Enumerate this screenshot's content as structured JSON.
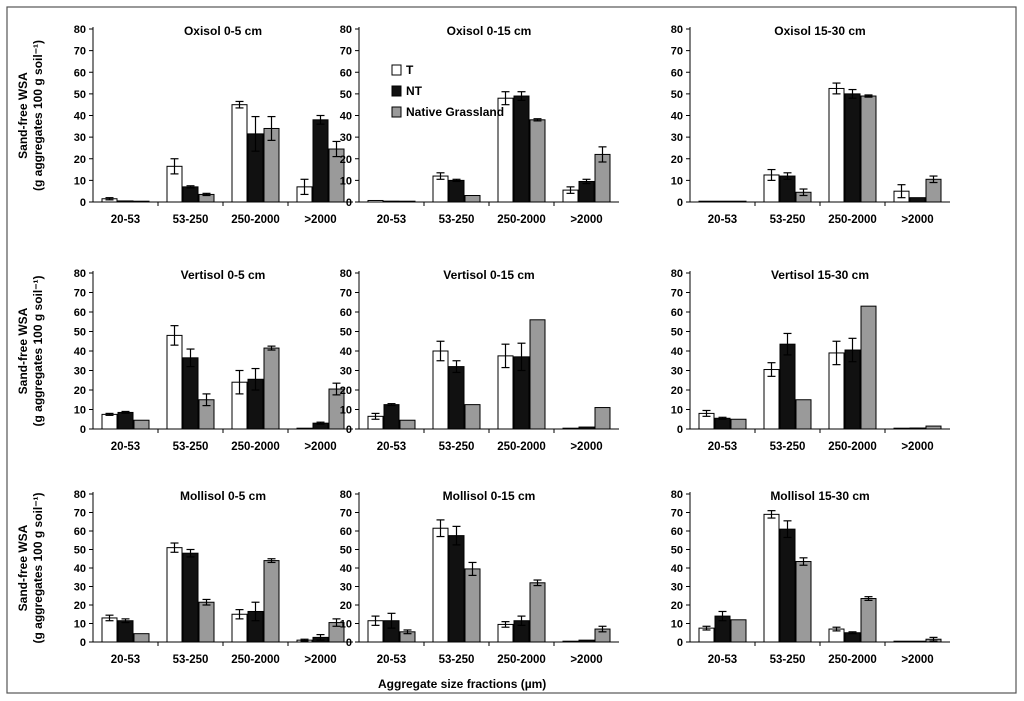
{
  "figure": {
    "y_axis_label_line1": "Sand-free WSA",
    "y_axis_label_line2": "(g aggregates 100 g soil⁻¹)",
    "x_axis_label": "Aggregate size fractions (µm)",
    "legend": [
      "T",
      "NT",
      "Native Grassland"
    ]
  },
  "colors": {
    "T": "#ffffff",
    "NT": "#111111",
    "Native Grassland": "#9a9a9a"
  },
  "chart_data": [
    {
      "type": "bar",
      "title": "Oxisol 0-5 cm",
      "categories": [
        "20-53",
        "53-250",
        "250-2000",
        ">2000"
      ],
      "ylim": [
        0,
        80
      ],
      "yticks": [
        0,
        10,
        20,
        30,
        40,
        50,
        60,
        70,
        80
      ],
      "series": [
        {
          "name": "T",
          "values": [
            1.5,
            16.5,
            45,
            7
          ],
          "errors": [
            0.5,
            3.5,
            1.5,
            3.5
          ]
        },
        {
          "name": "NT",
          "values": [
            0.5,
            7,
            31.5,
            38
          ],
          "errors": [
            0.3,
            0.5,
            8,
            2
          ]
        },
        {
          "name": "Native Grassland",
          "values": [
            0.3,
            3.5,
            34,
            24.5
          ],
          "errors": [
            0.2,
            0.5,
            5.5,
            3.5
          ]
        }
      ]
    },
    {
      "type": "bar",
      "title": "Oxisol 0-15 cm",
      "categories": [
        "20-53",
        "53-250",
        "250-2000",
        ">2000"
      ],
      "ylim": [
        0,
        80
      ],
      "yticks": [
        0,
        10,
        20,
        30,
        40,
        50,
        60,
        70,
        80
      ],
      "series": [
        {
          "name": "T",
          "values": [
            0.7,
            12,
            48,
            5.5
          ],
          "errors": [
            0.3,
            1.5,
            3,
            1.5
          ]
        },
        {
          "name": "NT",
          "values": [
            0.4,
            10,
            49,
            9.5
          ],
          "errors": [
            0.2,
            0.5,
            2,
            1
          ]
        },
        {
          "name": "Native Grassland",
          "values": [
            0.2,
            3,
            38,
            22
          ],
          "errors": [
            0.1,
            0.3,
            0.5,
            3.5
          ]
        }
      ]
    },
    {
      "type": "bar",
      "title": "Oxisol 15-30 cm",
      "categories": [
        "20-53",
        "53-250",
        "250-2000",
        ">2000"
      ],
      "ylim": [
        0,
        80
      ],
      "yticks": [
        0,
        10,
        20,
        30,
        40,
        50,
        60,
        70,
        80
      ],
      "series": [
        {
          "name": "T",
          "values": [
            0.3,
            12.5,
            52.5,
            5
          ],
          "errors": [
            0.1,
            2.5,
            2.5,
            3
          ]
        },
        {
          "name": "NT",
          "values": [
            0.2,
            12,
            50,
            2
          ],
          "errors": [
            0.1,
            1.5,
            2,
            0.3
          ]
        },
        {
          "name": "Native Grassland",
          "values": [
            0.1,
            4.5,
            49,
            10.5
          ],
          "errors": [
            0.1,
            1.5,
            0.5,
            1.5
          ]
        }
      ]
    },
    {
      "type": "bar",
      "title": "Vertisol 0-5 cm",
      "categories": [
        "20-53",
        "53-250",
        "250-2000",
        ">2000"
      ],
      "ylim": [
        0,
        80
      ],
      "yticks": [
        0,
        10,
        20,
        30,
        40,
        50,
        60,
        70,
        80
      ],
      "series": [
        {
          "name": "T",
          "values": [
            7.5,
            48,
            24,
            0.3
          ],
          "errors": [
            0.5,
            5,
            6,
            0.2
          ]
        },
        {
          "name": "NT",
          "values": [
            8.5,
            36.5,
            25.5,
            3
          ],
          "errors": [
            0.5,
            4.5,
            5.5,
            0.5
          ]
        },
        {
          "name": "Native Grassland",
          "values": [
            4.5,
            15,
            41.5,
            20.5
          ],
          "errors": [
            0.3,
            3,
            1,
            3
          ]
        }
      ]
    },
    {
      "type": "bar",
      "title": "Vertisol 0-15 cm",
      "categories": [
        "20-53",
        "53-250",
        "250-2000",
        ">2000"
      ],
      "ylim": [
        0,
        80
      ],
      "yticks": [
        0,
        10,
        20,
        30,
        40,
        50,
        60,
        70,
        80
      ],
      "series": [
        {
          "name": "T",
          "values": [
            6.5,
            40,
            37.5,
            0.2
          ],
          "errors": [
            1.5,
            5,
            6,
            0.1
          ]
        },
        {
          "name": "NT",
          "values": [
            12.5,
            32,
            37,
            1
          ],
          "errors": [
            0.5,
            3,
            7,
            0.3
          ]
        },
        {
          "name": "Native Grassland",
          "values": [
            4.5,
            12.5,
            56,
            11
          ],
          "errors": [
            0.3,
            0.3,
            0.3,
            0.3
          ]
        }
      ]
    },
    {
      "type": "bar",
      "title": "Vertisol 15-30 cm",
      "categories": [
        "20-53",
        "53-250",
        "250-2000",
        ">2000"
      ],
      "ylim": [
        0,
        80
      ],
      "yticks": [
        0,
        10,
        20,
        30,
        40,
        50,
        60,
        70,
        80
      ],
      "series": [
        {
          "name": "T",
          "values": [
            8,
            30.5,
            39,
            0.2
          ],
          "errors": [
            1.5,
            3.5,
            6,
            0.1
          ]
        },
        {
          "name": "NT",
          "values": [
            5.5,
            43.5,
            40.5,
            0.5
          ],
          "errors": [
            0.5,
            5.5,
            6,
            0.2
          ]
        },
        {
          "name": "Native Grassland",
          "values": [
            5,
            15,
            63,
            1.5
          ],
          "errors": [
            0.3,
            0.3,
            0.3,
            0.3
          ]
        }
      ]
    },
    {
      "type": "bar",
      "title": "Mollisol 0-5 cm",
      "categories": [
        "20-53",
        "53-250",
        "250-2000",
        ">2000"
      ],
      "ylim": [
        0,
        80
      ],
      "yticks": [
        0,
        10,
        20,
        30,
        40,
        50,
        60,
        70,
        80
      ],
      "series": [
        {
          "name": "T",
          "values": [
            13,
            51,
            15,
            1
          ],
          "errors": [
            1.5,
            2.5,
            2.5,
            0.5
          ]
        },
        {
          "name": "NT",
          "values": [
            11.5,
            48,
            16.5,
            2.5
          ],
          "errors": [
            1,
            2,
            5,
            1.5
          ]
        },
        {
          "name": "Native Grassland",
          "values": [
            4.5,
            21.5,
            44,
            10.5
          ],
          "errors": [
            0.3,
            1.5,
            1,
            2
          ]
        }
      ]
    },
    {
      "type": "bar",
      "title": "Mollisol 0-15 cm",
      "categories": [
        "20-53",
        "53-250",
        "250-2000",
        ">2000"
      ],
      "ylim": [
        0,
        80
      ],
      "yticks": [
        0,
        10,
        20,
        30,
        40,
        50,
        60,
        70,
        80
      ],
      "series": [
        {
          "name": "T",
          "values": [
            11.5,
            61.5,
            9.5,
            0.3
          ],
          "errors": [
            2.5,
            4.5,
            1.5,
            0.2
          ]
        },
        {
          "name": "NT",
          "values": [
            11.5,
            57.5,
            11.5,
            1
          ],
          "errors": [
            4,
            5,
            2.5,
            0.3
          ]
        },
        {
          "name": "Native Grassland",
          "values": [
            5.5,
            39.5,
            32,
            7
          ],
          "errors": [
            1,
            3.5,
            1.5,
            1.5
          ]
        }
      ]
    },
    {
      "type": "bar",
      "title": "Mollisol 15-30 cm",
      "categories": [
        "20-53",
        "53-250",
        "250-2000",
        ">2000"
      ],
      "ylim": [
        0,
        80
      ],
      "yticks": [
        0,
        10,
        20,
        30,
        40,
        50,
        60,
        70,
        80
      ],
      "series": [
        {
          "name": "T",
          "values": [
            7.5,
            69,
            7,
            0.2
          ],
          "errors": [
            1,
            2,
            1,
            0.1
          ]
        },
        {
          "name": "NT",
          "values": [
            14,
            61,
            5,
            0.3
          ],
          "errors": [
            2.5,
            4.5,
            0.5,
            0.1
          ]
        },
        {
          "name": "Native Grassland",
          "values": [
            12,
            43.5,
            23.5,
            1.5
          ],
          "errors": [
            0.3,
            2,
            1,
            1
          ]
        }
      ]
    }
  ]
}
